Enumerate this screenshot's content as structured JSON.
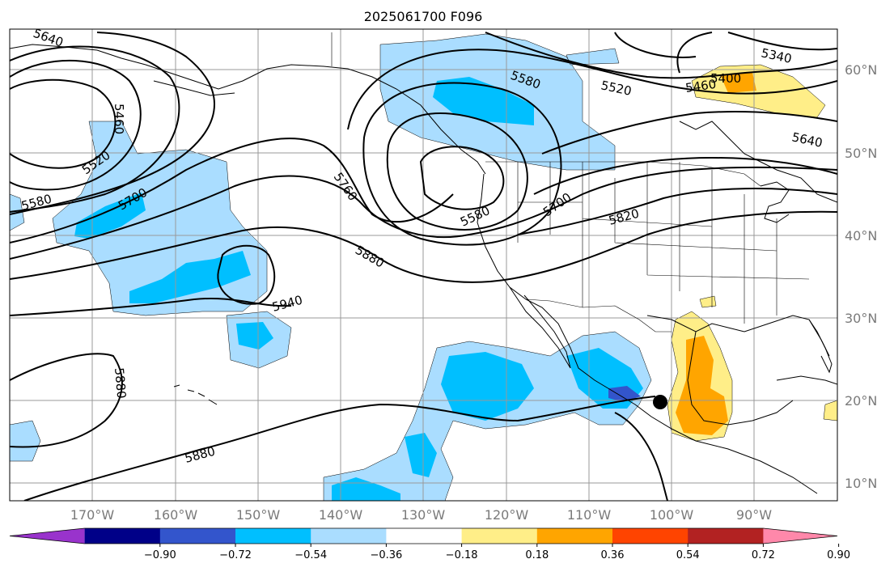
{
  "title": "2025061700 F096",
  "lat_labels": [
    "60°N",
    "50°N",
    "40°N",
    "30°N",
    "20°N",
    "10°N"
  ],
  "lon_labels": [
    "170°W",
    "160°W",
    "150°W",
    "140°W",
    "130°W",
    "120°W",
    "110°W",
    "100°W",
    "90°W"
  ],
  "contour_labels": [
    "5640",
    "5460",
    "5520",
    "5580",
    "5700",
    "5760",
    "5580",
    "5880",
    "5940",
    "5880",
    "5880",
    "5580",
    "5520",
    "5460",
    "5340",
    "5400",
    "5700",
    "5820",
    "5640"
  ],
  "colorbar": {
    "ticks": [
      "−0.90",
      "−0.72",
      "−0.54",
      "−0.36",
      "−0.18",
      "0.18",
      "0.36",
      "0.54",
      "0.72",
      "0.90"
    ],
    "colors": [
      "#9933cc",
      "#000088",
      "#3355cc",
      "#00bfff",
      "#aaddff",
      "#ffffff",
      "#ffee88",
      "#ffa500",
      "#ff4400",
      "#b22222",
      "#ff88aa"
    ]
  },
  "colors": {
    "land": "#ffffff",
    "negative_light": "#aaddff",
    "negative_mid": "#00bfff",
    "negative_strong": "#3355cc",
    "positive_light": "#ffee88",
    "positive_mid": "#ffa500",
    "contour": "#000000",
    "grid": "#999999"
  },
  "marker": "black-dot"
}
